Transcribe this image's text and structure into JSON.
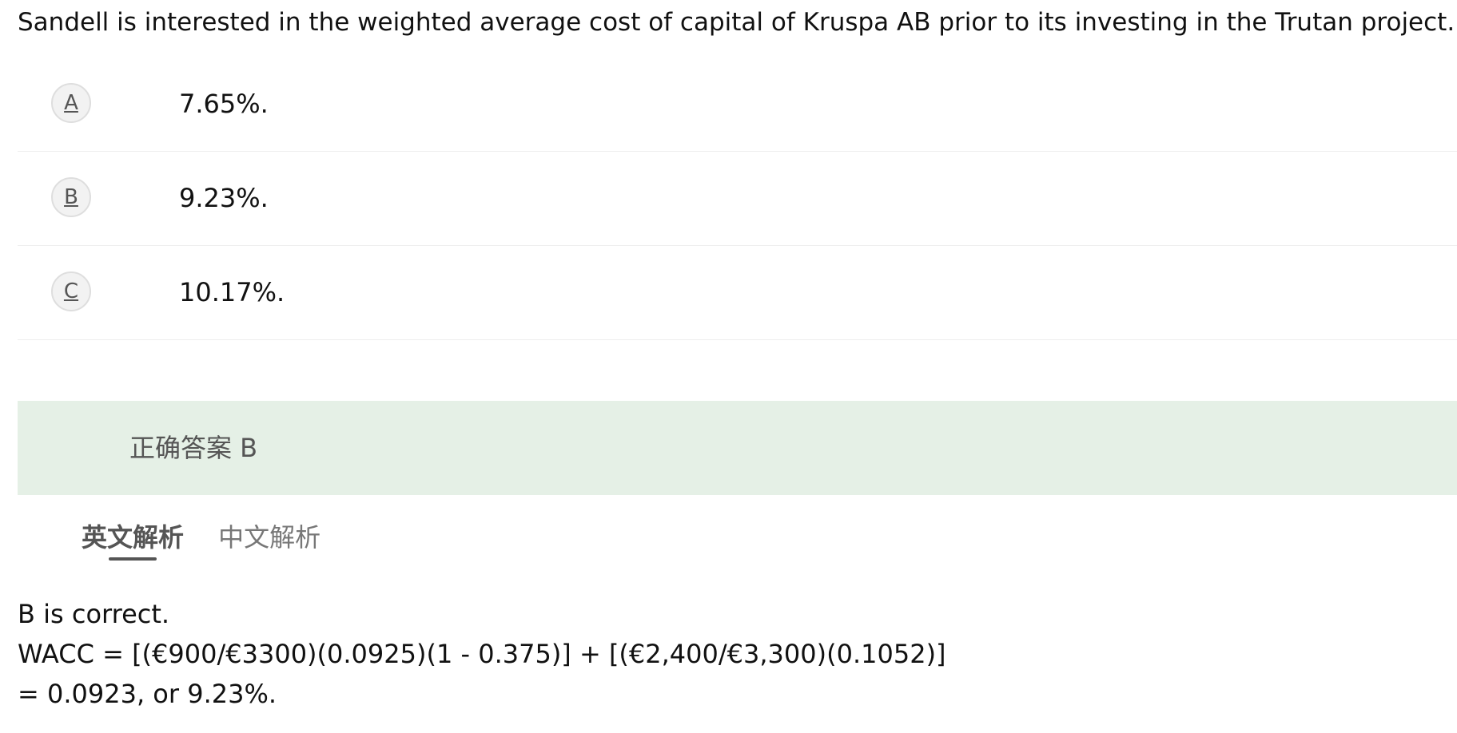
{
  "question": {
    "text": "Sandell is interested in the weighted average cost of capital of Kruspa AB prior to its investing in the Trutan project. Th"
  },
  "options": [
    {
      "letter": "A",
      "text": "7.65%."
    },
    {
      "letter": "B",
      "text": "9.23%."
    },
    {
      "letter": "C",
      "text": "10.17%."
    }
  ],
  "answer": {
    "label": "正确答案 B"
  },
  "tabs": [
    {
      "label": "英文解析",
      "active": true
    },
    {
      "label": "中文解析",
      "active": false
    }
  ],
  "explanation": {
    "lines": [
      "B is correct.",
      "WACC = [(€900/€3300)(0.0925)(1  -  0.375)] + [(€2,400/€3,300)(0.1052)]",
      "= 0.0923, or 9.23%."
    ]
  },
  "colors": {
    "answer_banner_bg": "#e5f0e6",
    "active_tab_underline": "#555555"
  }
}
